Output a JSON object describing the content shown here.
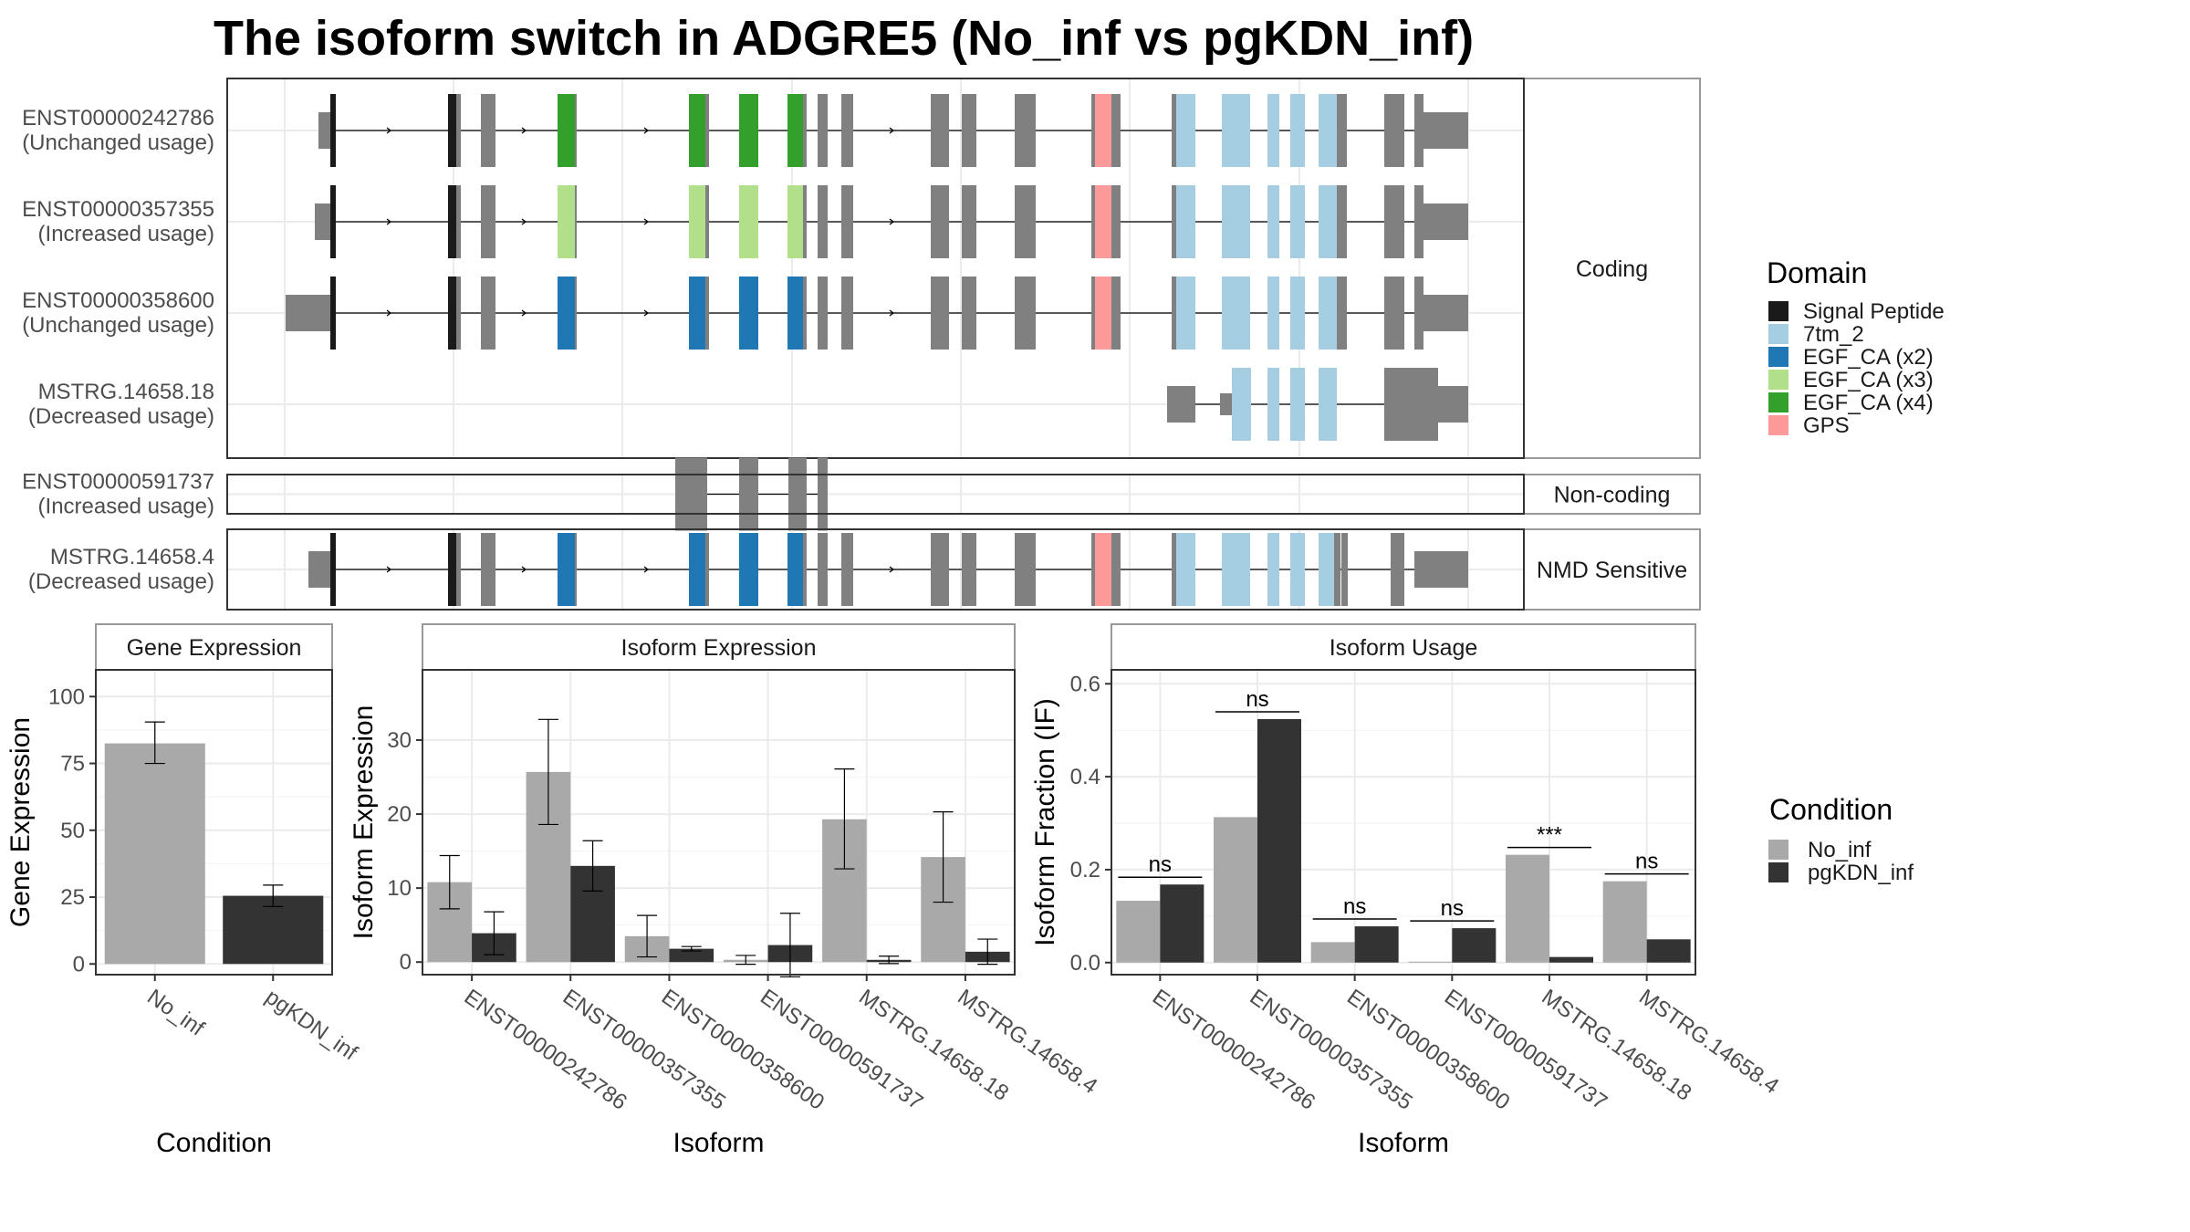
{
  "title": "The isoform switch in ADGRE5 (No_inf vs pgKDN_inf)",
  "colors": {
    "exon": "#808080",
    "signal_peptide": "#1a1a1a",
    "7tm_2": "#a6cee3",
    "egf_ca_x2": "#1f78b4",
    "egf_ca_x3": "#b2df8a",
    "egf_ca_x4": "#33a02c",
    "gps": "#fb9a99",
    "no_inf": "#a9a9a9",
    "pgkdn_inf": "#333333"
  },
  "gene_model": {
    "panels": [
      {
        "label": "Coding",
        "rows": [
          {
            "id": "ENST00000242786",
            "usage": "(Unchanged usage)",
            "egf": "egf_ca_x4"
          },
          {
            "id": "ENST00000357355",
            "usage": "(Increased usage)",
            "egf": "egf_ca_x3"
          },
          {
            "id": "ENST00000358600",
            "usage": "(Unchanged usage)",
            "egf": "egf_ca_x2"
          },
          {
            "id": "MSTRG.14658.18",
            "usage": "(Decreased usage)",
            "egf": "none"
          }
        ]
      },
      {
        "label": "Non-coding",
        "rows": [
          {
            "id": "ENST00000591737",
            "usage": "(Increased usage)",
            "egf": "none"
          }
        ]
      },
      {
        "label": "NMD Sensitive",
        "rows": [
          {
            "id": "MSTRG.14658.4",
            "usage": "(Decreased usage)",
            "egf": "egf_ca_x2"
          }
        ]
      }
    ]
  },
  "domain_legend": {
    "title": "Domain",
    "items": [
      {
        "label": "Signal Peptide",
        "color": "#1a1a1a"
      },
      {
        "label": "7tm_2",
        "color": "#a6cee3"
      },
      {
        "label": "EGF_CA (x2)",
        "color": "#1f78b4"
      },
      {
        "label": "EGF_CA (x3)",
        "color": "#b2df8a"
      },
      {
        "label": "EGF_CA (x4)",
        "color": "#33a02c"
      },
      {
        "label": "GPS",
        "color": "#fb9a99"
      }
    ]
  },
  "condition_legend": {
    "title": "Condition",
    "items": [
      {
        "label": "No_inf",
        "color": "#a9a9a9"
      },
      {
        "label": "pgKDN_inf",
        "color": "#333333"
      }
    ]
  },
  "chart_data": [
    {
      "type": "bar",
      "title": "Gene Expression",
      "xlabel": "Condition",
      "ylabel": "Gene Expression",
      "categories": [
        "No_inf",
        "pgKDN_inf"
      ],
      "values": [
        82.5,
        25.5
      ],
      "error": [
        [
          75,
          90.5
        ],
        [
          21.5,
          29.5
        ]
      ],
      "ylim": [
        -4,
        110
      ],
      "yticks": [
        0,
        25,
        50,
        75,
        100
      ]
    },
    {
      "type": "bar",
      "title": "Isoform Expression",
      "xlabel": "Isoform",
      "ylabel": "Isoform Expression",
      "categories": [
        "ENST00000242786",
        "ENST00000357355",
        "ENST00000358600",
        "ENST00000591737",
        "MSTRG.14658.18",
        "MSTRG.14658.4"
      ],
      "series": [
        {
          "name": "No_inf",
          "values": [
            10.8,
            25.7,
            3.5,
            0.3,
            19.3,
            14.2
          ],
          "error": [
            [
              7.2,
              14.4
            ],
            [
              18.6,
              32.8
            ],
            [
              0.7,
              6.3
            ],
            [
              -0.3,
              0.9
            ],
            [
              12.6,
              26.1
            ],
            [
              8.1,
              20.3
            ]
          ]
        },
        {
          "name": "pgKDN_inf",
          "values": [
            3.9,
            13.0,
            1.8,
            2.3,
            0.3,
            1.4
          ],
          "error": [
            [
              1.0,
              6.8
            ],
            [
              9.6,
              16.4
            ],
            [
              1.5,
              2.1
            ],
            [
              -2.0,
              6.6
            ],
            [
              -0.2,
              0.8
            ],
            [
              -0.3,
              3.1
            ]
          ]
        }
      ],
      "ylim": [
        -1.7,
        39.5
      ],
      "yticks": [
        0,
        10,
        20,
        30
      ]
    },
    {
      "type": "bar",
      "title": "Isoform Usage",
      "xlabel": "Isoform",
      "ylabel": "Isoform Fraction (IF)",
      "categories": [
        "ENST00000242786",
        "ENST00000357355",
        "ENST00000358600",
        "ENST00000591737",
        "MSTRG.14658.18",
        "MSTRG.14658.4"
      ],
      "series": [
        {
          "name": "No_inf",
          "values": [
            0.133,
            0.313,
            0.044,
            0.0,
            0.232,
            0.175
          ]
        },
        {
          "name": "pgKDN_inf",
          "values": [
            0.168,
            0.524,
            0.078,
            0.074,
            0.012,
            0.05
          ]
        }
      ],
      "significance": [
        "ns",
        "ns",
        "ns",
        "ns",
        "***",
        "ns"
      ],
      "ylim": [
        -0.026,
        0.63
      ],
      "yticks": [
        "0.0",
        "0.2",
        "0.4",
        "0.6"
      ]
    }
  ]
}
